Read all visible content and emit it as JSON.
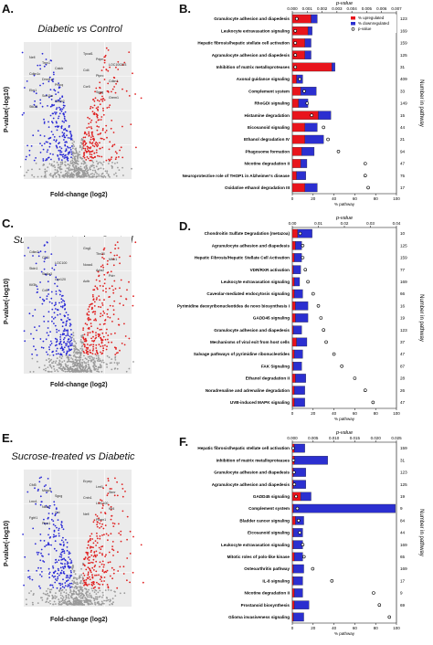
{
  "panels": [
    {
      "letter": "A.",
      "title": "Diabetic vs Control",
      "xlabel": "Fold-change (log2)",
      "ylabel": "P-value(-log10)",
      "labels_left": [
        "Nefl",
        "Trpv1",
        "Calcb",
        "Cdkn1c",
        "Dmrt1a",
        "Prkcq",
        "Elm1",
        "Scn11a",
        "Gcnb2",
        "Stk35"
      ],
      "labels_right": [
        "Tpcal1",
        "Pdpn",
        "LOC100293",
        "Cd4",
        "Ptprc",
        "Cdkn1",
        "Ccr6",
        "Sgcg",
        "Grem1"
      ]
    },
    {
      "letter": "C.",
      "title": "Sucrose-treated vs Control",
      "xlabel": "Fold-change (log2)",
      "ylabel": "P-value(-log10)",
      "labels_left": [
        "Cdkn2",
        "Clt11",
        "LOC100",
        "Stdn1",
        "Slc6a3",
        "Gpr120",
        "Kif3b",
        "Cd9"
      ],
      "labels_right": [
        "Gng1",
        "Tbx20",
        "Mtdr1",
        "Noxa4",
        "Acta2",
        "Pdrr",
        "Actb"
      ]
    },
    {
      "letter": "E.",
      "title": "Sucrose-treated vs Diabetic",
      "xlabel": "Fold-change (log2)",
      "ylabel": "P-value(-log10)",
      "labels_left": [
        "Cfd5",
        "Mlap4",
        "Sgcg",
        "Lmx1",
        "Nkx6",
        "Cnl",
        "Fgfrl1",
        "Ptpn1"
      ],
      "labels_right": [
        "Erpep",
        "Lmt1",
        "Stmr",
        "Cntn1",
        "LOC100",
        "Klf4",
        "Nefl",
        "Pkmn1"
      ]
    }
  ],
  "chart_data": [
    {
      "type": "volcano",
      "panel": "A",
      "title": "Diabetic vs Control",
      "xlabel": "Fold-change (log2)",
      "ylabel": "P-value(-log10)",
      "colors": {
        "down": "#2b2bd6",
        "up": "#e02020",
        "ns": "#9a9a9a"
      }
    },
    {
      "type": "bar",
      "panel": "B",
      "orientation": "horizontal",
      "stacked": true,
      "title": "p-value",
      "xlabel": "% pathway",
      "ylabel_right": "Number in pathway",
      "top_ticks": [
        "0.000",
        "0.001",
        "0.002",
        "0.003",
        "0.004",
        "0.005",
        "0.006",
        "0.007"
      ],
      "bottom_ticks": [
        "0",
        "20",
        "40",
        "60",
        "80",
        "100"
      ],
      "legend": [
        "% upregulated",
        "% downregulated",
        "p-value"
      ],
      "categories": [
        "Granulocyte adhesion and diapedesis",
        "Leukocyte extravasation signaling",
        "Hepatic fibrosis/hepatic stellate cell activation",
        "Agranulocyte adhesion and diapedesis",
        "Inhibition of matrix metalloproteases",
        "Axonal guidance signaling",
        "Complement system",
        "RhoGDI signaling",
        "Histamine degradation",
        "Eicosanoid signaling",
        "Ethanol degradation IV",
        "Phagosome formation",
        "Nicotine degradation II",
        "Neuroprotective role of THOP1 in Alzheimer's disease",
        "Oxidative ethanol degradation III"
      ],
      "counts": [
        "123",
        "169",
        "159",
        "125",
        "31",
        "409",
        "33",
        "149",
        "15",
        "44",
        "21",
        "94",
        "47",
        "75",
        "17"
      ],
      "series": [
        {
          "name": "% upregulated",
          "values": [
            18,
            15,
            12,
            12,
            38,
            4,
            8,
            6,
            25,
            12,
            12,
            9,
            8,
            4,
            12
          ]
        },
        {
          "name": "% downregulated",
          "values": [
            6,
            4,
            6,
            6,
            3,
            6,
            15,
            9,
            12,
            12,
            18,
            12,
            6,
            9,
            12
          ]
        }
      ],
      "pvalue": [
        0.0003,
        0.0002,
        0.0002,
        0.0002,
        0.0002,
        0.0005,
        0.0008,
        0.001,
        0.0013,
        0.0021,
        0.0024,
        0.0031,
        0.0049,
        0.0049,
        0.0051
      ],
      "p_range": [
        0,
        0.007
      ],
      "xlim": [
        0,
        100
      ]
    },
    {
      "type": "volcano",
      "panel": "C",
      "title": "Sucrose-treated vs Control",
      "xlabel": "Fold-change (log2)",
      "ylabel": "P-value(-log10)",
      "colors": {
        "down": "#2b2bd6",
        "up": "#e02020",
        "ns": "#9a9a9a"
      }
    },
    {
      "type": "bar",
      "panel": "D",
      "orientation": "horizontal",
      "stacked": true,
      "title": "p-value",
      "xlabel": "% pathway",
      "ylabel_right": "Number in pathway",
      "top_ticks": [
        "0.00",
        "0.01",
        "0.02",
        "0.03",
        "0.04"
      ],
      "bottom_ticks": [
        "0",
        "20",
        "40",
        "60",
        "80",
        "100"
      ],
      "categories": [
        "Chondroitin Sulfate Degradation (metazoa)",
        "Agranulocyte adhesion and diapedesis",
        "Hepatic Fibrosis/Hepatic Stellate Cell Activation",
        "VDR/RXR activation",
        "Leukocyte extravasation signaling",
        "Caveolar-mediated endocytosis signaling",
        "Pyrimidine deoxyribonucleotides de novo biosynthesis I",
        "GADD45 signaling",
        "Granulocyte adhesion and diapedesis",
        "Mechanisms of viral exit from host cells",
        "Salvage pathways of pyrimidine ribonucleotides",
        "FAK Signaling",
        "Ethanol degradation II",
        "Noradrenaline and adrenaline degradation",
        "UVB-induced MAPK signaling"
      ],
      "counts": [
        "10",
        "125",
        "159",
        "77",
        "169",
        "66",
        "16",
        "19",
        "123",
        "37",
        "47",
        "87",
        "28",
        "26",
        "47"
      ],
      "series": [
        {
          "name": "% upregulated",
          "values": [
            5,
            3,
            2,
            1,
            2,
            2,
            3,
            3,
            1,
            4,
            2,
            1,
            3,
            2,
            2
          ]
        },
        {
          "name": "% downregulated",
          "values": [
            14,
            6,
            7,
            7,
            5,
            8,
            12,
            12,
            8,
            10,
            8,
            8,
            10,
            10,
            10
          ]
        }
      ],
      "pvalue": [
        0.003,
        0.004,
        0.004,
        0.005,
        0.006,
        0.008,
        0.01,
        0.011,
        0.012,
        0.013,
        0.016,
        0.019,
        0.024,
        0.028,
        0.031
      ],
      "p_range": [
        0,
        0.04
      ],
      "xlim": [
        0,
        100
      ]
    },
    {
      "type": "volcano",
      "panel": "E",
      "title": "Sucrose-treated vs Diabetic",
      "xlabel": "Fold-change (log2)",
      "ylabel": "P-value(-log10)",
      "colors": {
        "down": "#2b2bd6",
        "up": "#e02020",
        "ns": "#9a9a9a"
      }
    },
    {
      "type": "bar",
      "panel": "F",
      "orientation": "horizontal",
      "stacked": true,
      "title": "p-value",
      "xlabel": "% pathway",
      "ylabel_right": "Number in pathway",
      "top_ticks": [
        "0.000",
        "0.005",
        "0.010",
        "0.015",
        "0.020",
        "0.025"
      ],
      "bottom_ticks": [
        "0",
        "20",
        "40",
        "60",
        "80",
        "100"
      ],
      "categories": [
        "Hepatic fibrosis/hepatic stellate cell activation",
        "Inhibition of matrix metalloproteases",
        "Granulocyte adhesion and diapedesis",
        "Agranulocyte adhesion and diapedesis",
        "GADD45 signaling",
        "Complement system",
        "Bladder cancer signaling",
        "Eicosanoid signaling",
        "Leukocyte extravasation signaling",
        "Mitotic roles of polo-like kinase",
        "Osteoarthritis pathway",
        "IL-8 signaling",
        "Nicotine degradation II",
        "Prostanoid biosynthesis",
        "Glioma invasiveness signaling"
      ],
      "counts": [
        "159",
        "31",
        "123",
        "125",
        "19",
        "9",
        "84",
        "44",
        "169",
        "65",
        "169",
        "17",
        "9",
        "69",
        ""
      ],
      "series": [
        {
          "name": "% upregulated",
          "values": [
            2,
            2,
            1,
            1,
            8,
            1,
            3,
            1,
            1,
            2,
            1,
            1,
            2,
            2,
            1
          ]
        },
        {
          "name": "% downregulated",
          "values": [
            10,
            32,
            12,
            12,
            10,
            98,
            8,
            9,
            9,
            8,
            10,
            9,
            8,
            14,
            10
          ]
        }
      ],
      "pvalue": [
        0.0002,
        0.0003,
        0.0004,
        0.0005,
        0.0009,
        0.0012,
        0.0015,
        0.0018,
        0.0025,
        0.0028,
        0.0049,
        0.0095,
        0.0195,
        0.0209,
        0.0233
      ],
      "p_range": [
        0,
        0.025
      ],
      "xlim": [
        0,
        100
      ]
    }
  ]
}
